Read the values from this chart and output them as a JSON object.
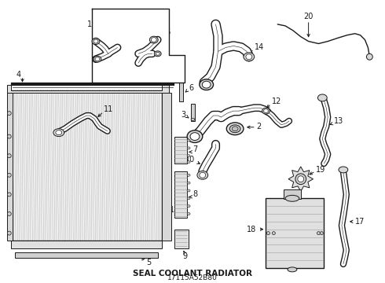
{
  "title": "SEAL COOLANT RADIATOR",
  "part_number": "17115A52B80",
  "bg": "#ffffff",
  "lc": "#1a1a1a",
  "figsize": [
    4.9,
    3.6
  ],
  "dpi": 100
}
